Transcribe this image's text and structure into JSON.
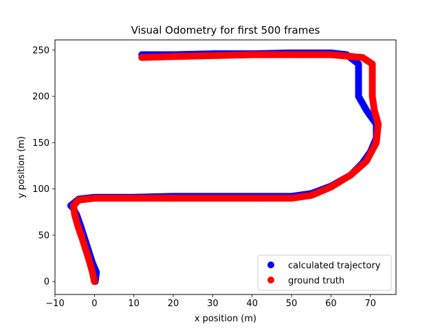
{
  "chart_data": {
    "type": "scatter",
    "title": "Visual Odometry for first 500 frames",
    "xlabel": "x position (m)",
    "ylabel": "y position (m)",
    "xlim": [
      -10,
      76.5
    ],
    "ylim": [
      -14,
      261
    ],
    "xticks": [
      -10,
      0,
      10,
      20,
      30,
      40,
      50,
      60,
      70
    ],
    "yticks": [
      0,
      50,
      100,
      150,
      200,
      250
    ],
    "legend_position": "lower right",
    "series": [
      {
        "name": "calculated trajectory",
        "color": "#0000ff",
        "path": [
          [
            0.2,
            0
          ],
          [
            0.5,
            10
          ],
          [
            -0.5,
            20
          ],
          [
            -2.0,
            40
          ],
          [
            -3.5,
            60
          ],
          [
            -4.5,
            72
          ],
          [
            -5.5,
            80
          ],
          [
            -6,
            82
          ],
          [
            -4,
            89
          ],
          [
            0,
            91
          ],
          [
            10,
            91
          ],
          [
            20,
            92
          ],
          [
            30,
            92
          ],
          [
            40,
            92
          ],
          [
            50,
            92
          ],
          [
            55,
            95
          ],
          [
            60,
            103
          ],
          [
            65,
            115
          ],
          [
            68,
            128
          ],
          [
            70,
            140
          ],
          [
            71.5,
            155
          ],
          [
            71.5,
            170
          ],
          [
            69,
            185
          ],
          [
            67,
            200
          ],
          [
            67,
            220
          ],
          [
            67,
            235
          ],
          [
            64,
            245
          ],
          [
            60,
            247
          ],
          [
            50,
            247
          ],
          [
            40,
            246
          ],
          [
            30,
            246
          ],
          [
            20,
            245
          ],
          [
            12,
            245
          ]
        ]
      },
      {
        "name": "ground truth",
        "color": "#ff0000",
        "path": [
          [
            0,
            0
          ],
          [
            -0.5,
            10
          ],
          [
            -1.5,
            25
          ],
          [
            -3,
            45
          ],
          [
            -4.2,
            60
          ],
          [
            -5.0,
            72
          ],
          [
            -5.3,
            82
          ],
          [
            -4,
            88
          ],
          [
            0,
            90
          ],
          [
            10,
            90
          ],
          [
            20,
            90
          ],
          [
            30,
            90
          ],
          [
            40,
            90
          ],
          [
            50,
            90
          ],
          [
            55,
            93
          ],
          [
            60,
            102
          ],
          [
            65,
            115
          ],
          [
            69,
            130
          ],
          [
            71.5,
            150
          ],
          [
            72,
            170
          ],
          [
            71,
            185
          ],
          [
            70.5,
            200
          ],
          [
            70.5,
            220
          ],
          [
            70.5,
            235
          ],
          [
            68,
            242
          ],
          [
            60,
            245
          ],
          [
            50,
            245
          ],
          [
            40,
            245
          ],
          [
            30,
            244
          ],
          [
            20,
            243
          ],
          [
            12,
            242
          ]
        ]
      }
    ]
  }
}
